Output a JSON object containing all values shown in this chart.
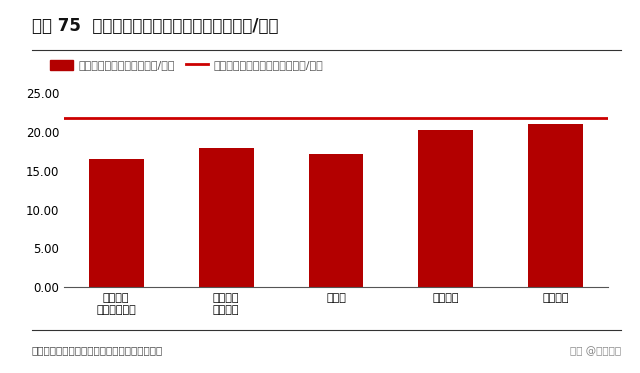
{
  "title": "图表 75  公司六氟磷酸锂单吨成本比较（万元/吨）",
  "categories": [
    "天赐材料\n（液态折固）",
    "天赐材料\n（固态）",
    "多氟多",
    "天际股份",
    "永太科技"
  ],
  "values": [
    16.5,
    18.0,
    17.2,
    20.3,
    21.0
  ],
  "bar_color": "#B30000",
  "avg_line_value": 21.8,
  "avg_line_color": "#CC0000",
  "ylim": [
    0,
    25
  ],
  "yticks": [
    0.0,
    5.0,
    10.0,
    15.0,
    20.0,
    25.0
  ],
  "legend_bar_label": "六氟磷酸锂单吨成本（万元/吨）",
  "legend_line_label": "六氟磷酸锂行业平均成本（万元/吨）",
  "source_text": "资料来源：各公司公告，环评，华安证券研究所",
  "watermark_text": "头条 @未来智库",
  "background_color": "#FFFFFF",
  "title_fontsize": 12,
  "label_fontsize": 8,
  "tick_fontsize": 8.5,
  "legend_fontsize": 8,
  "source_fontsize": 7.5
}
